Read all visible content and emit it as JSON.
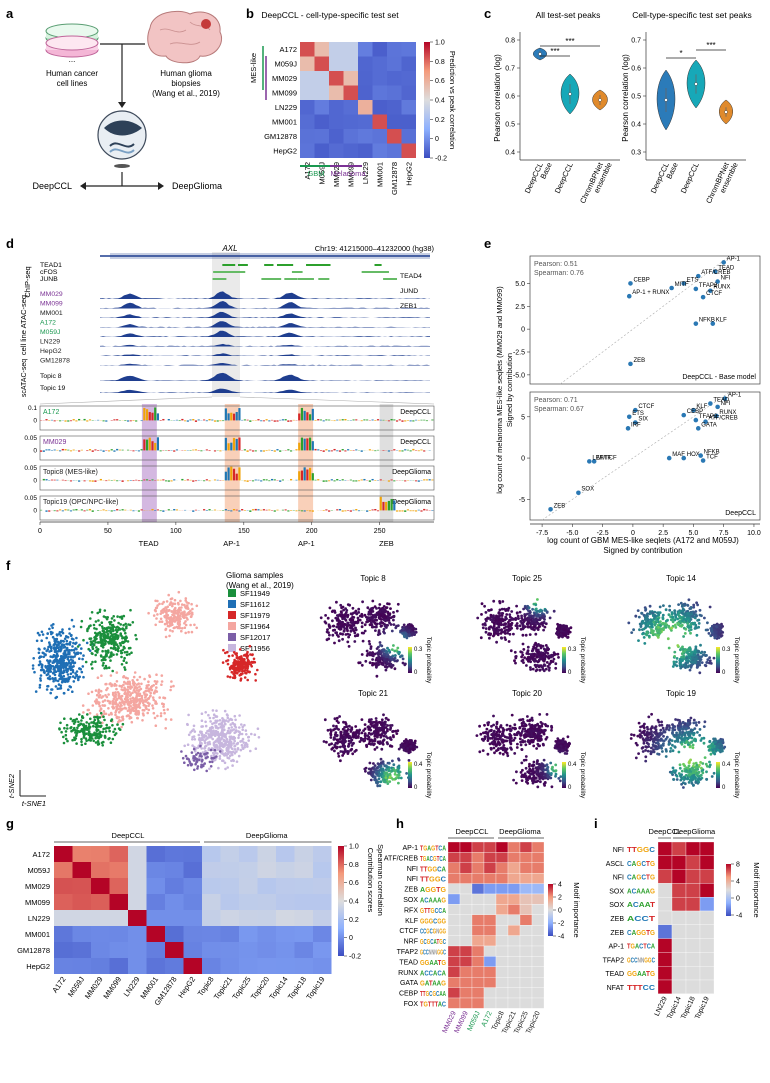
{
  "panels": {
    "a": {
      "letter": "a",
      "cell_lines_label_1": "Human cancer",
      "cell_lines_label_2": "cell lines",
      "dots": "...",
      "biopsy_label_1": "Human glioma",
      "biopsy_label_2": "biopsies",
      "biopsy_label_3": "(Wang et al., 2019)",
      "model_left": "DeepCCL",
      "model_right": "DeepGlioma"
    },
    "b": {
      "letter": "b",
      "title": "DeepCCL - cell-type-specific test set",
      "bracket_label": "MES-like",
      "rows": [
        "A172",
        "M059J",
        "MM029",
        "MM099",
        "LN229",
        "MM001",
        "GM12878",
        "HepG2"
      ],
      "cols": [
        "A172",
        "M059J",
        "MM029",
        "MM099",
        "LN229",
        "MM001",
        "GM12878",
        "HepG2"
      ],
      "colorbar_label": "Prediction vs peak correlation",
      "colorbar_ticks": [
        "1.0",
        "0.8",
        "0.6",
        "0.4",
        "0.2",
        "0",
        "-0.2"
      ],
      "group_gbm": "GBM",
      "group_melanoma": "Melanoma",
      "colors": {
        "gbm": "#1a9850",
        "melanoma": "#7b3294"
      }
    },
    "c": {
      "letter": "c",
      "left_title": "All test-set peaks",
      "right_title": "Cell-type-specific test set peaks",
      "ylabel": "Pearson correlation (log)",
      "left_yticks": [
        "0.8",
        "0.7",
        "0.6",
        "0.5",
        "0.4"
      ],
      "right_yticks": [
        "0.7",
        "0.6",
        "0.5",
        "0.4",
        "0.3"
      ],
      "cats": [
        "DeepCCL Base",
        "DeepCCL",
        "ChromBPNet ensemble"
      ],
      "sig": [
        "***",
        "***",
        "*",
        "***"
      ]
    },
    "d": {
      "letter": "d",
      "gene": "AXL",
      "locus": "Chr19: 41215000–41232000 (hg38)",
      "chip_label": "ChIP-seq",
      "chip_tracks": [
        "TEAD1",
        "cFOS",
        "JUNB"
      ],
      "chip_right": [
        "TEAD4",
        "JUND",
        "ZEB1"
      ],
      "atac_label": "cell line ATAC-seq",
      "atac_tracks": [
        "MM029",
        "MM099",
        "MM001",
        "A172",
        "M059J",
        "LN229",
        "HepG2",
        "GM12878"
      ],
      "scatac_label": "scATAC-seq",
      "scatac_tracks": [
        "Topic 8",
        "Topic 19"
      ],
      "contrib_rows": [
        {
          "label": "A172",
          "model": "DeepCCL",
          "ymax": "0.1",
          "ymin": "0"
        },
        {
          "label": "MM029",
          "model": "DeepCCL",
          "ymax": "0.05",
          "ymin": "0"
        },
        {
          "label": "Topic8 (MES-like)",
          "model": "DeepGlioma",
          "ymax": "0.05",
          "ymin": "0"
        },
        {
          "label": "Topic19 (OPC/NPC-like)",
          "model": "DeepGlioma",
          "ymax": "0.05",
          "ymin": "0"
        }
      ],
      "xticks": [
        "0",
        "50",
        "100",
        "150",
        "200",
        "250"
      ],
      "motifs": [
        "TEAD",
        "AP-1",
        "AP-1",
        "ZEB"
      ]
    },
    "e": {
      "letter": "e",
      "ylabel_1": "log count of melanoma MES-like seqlets (MM029 and MM099)",
      "ylabel_2": "Signed by contribution",
      "xlabel_1": "log count of GBM MES-like seqlets (A172 and M059J)",
      "xlabel_2": "Signed by contribution",
      "top": {
        "pearson": "Pearson: 0.51",
        "spearman": "Spearman: 0.76",
        "model": "DeepCCL - Base model",
        "yticks": [
          "5.0",
          "2.5",
          "0",
          "-2.5",
          "-5.0"
        ]
      },
      "bottom": {
        "pearson": "Pearson: 0.71",
        "spearman": "Spearman: 0.67",
        "model": "DeepCCL",
        "yticks": [
          "5",
          "0",
          "-5"
        ]
      },
      "xticks": [
        "-7.5",
        "-5.0",
        "-2.5",
        "0",
        "2.5",
        "5.0",
        "7.5",
        "10.0"
      ]
    },
    "f": {
      "letter": "f",
      "legend_title_1": "Glioma samples",
      "legend_title_2": "(Wang et al., 2019)",
      "samples": [
        {
          "name": "SF11949",
          "color": "#1a8f3c"
        },
        {
          "name": "SF11612",
          "color": "#1f6fb5"
        },
        {
          "name": "SF11979",
          "color": "#d62728"
        },
        {
          "name": "SF11964",
          "color": "#f4a6a0"
        },
        {
          "name": "SF12017",
          "color": "#7b5ea7"
        },
        {
          "name": "SF11956",
          "color": "#c7b6de"
        }
      ],
      "axis_y": "t-SNE2",
      "axis_x": "t-SNE1",
      "topics": [
        {
          "name": "Topic 8",
          "cmax": "0.3"
        },
        {
          "name": "Topic 25",
          "cmax": "0.3"
        },
        {
          "name": "Topic 14",
          "cmax": "0.3"
        },
        {
          "name": "Topic 21",
          "cmax": "0.4"
        },
        {
          "name": "Topic 20",
          "cmax": "0.4"
        },
        {
          "name": "Topic 19",
          "cmax": "0.4"
        }
      ],
      "cmin": "0",
      "cbar_label": "Topic probability"
    },
    "g": {
      "letter": "g",
      "group_left": "DeepCCL",
      "group_right": "DeepGlioma",
      "rows": [
        "A172",
        "M059J",
        "MM029",
        "MM099",
        "LN229",
        "MM001",
        "GM12878",
        "HepG2"
      ],
      "cols": [
        "A172",
        "M059J",
        "MM029",
        "MM099",
        "LN229",
        "MM001",
        "GM12878",
        "HepG2",
        "Topic8",
        "Topic21",
        "Topic25",
        "Topic20",
        "Topic14",
        "Topic18",
        "Topic19"
      ],
      "cbar_label_1": "Contribution scores",
      "cbar_label_2": "Spearman correlation",
      "cbar_ticks": [
        "1.0",
        "0.8",
        "0.6",
        "0.4",
        "0.2",
        "0",
        "-0.2"
      ]
    },
    "h": {
      "letter": "h",
      "group_left": "DeepCCL",
      "group_right": "DeepGlioma",
      "rows": [
        "AP-1",
        "ATF/CREB",
        "NFI",
        "NFI",
        "ZEB",
        "SOX",
        "RFX",
        "KLF",
        "CTCF",
        "NRF",
        "TFAP2",
        "TEAD",
        "RUNX",
        "GATA",
        "CEBP",
        "FOX"
      ],
      "logos": [
        "TGAGTCA",
        "TGACGTCA",
        "TTGGCA",
        "TTGGC",
        "AGGTG",
        "ACAAAG",
        "GTTGCCA",
        "GGGCGG",
        "CCGCGNGG",
        "GCGCATGC",
        "GCCNNNGGC",
        "GGAATG",
        "ACCACA",
        "GATAAG",
        "TTGCGCAA",
        "TGTTTAC"
      ],
      "cols": [
        "MM029",
        "MM099",
        "M059J",
        "A172",
        "Topic8",
        "Topic21",
        "Topic25",
        "Topic20"
      ],
      "cbar_label": "Motif importance",
      "cbar_ticks": [
        "4",
        "2",
        "0",
        "-2",
        "-4"
      ]
    },
    "i": {
      "letter": "i",
      "group_left": "DeepCCL",
      "group_right": "DeepGlioma",
      "rows": [
        "NFI",
        "ASCL",
        "NFI",
        "SOX",
        "SOX",
        "ZEB",
        "ZEB",
        "AP-1",
        "TFAP2",
        "TEAD",
        "NFAT"
      ],
      "logos": [
        "TTGGC",
        "CAGCTG",
        "CAGCTG",
        "ACAAAG",
        "ACAAT",
        "ACCT",
        "CAGGTG",
        "TGACTCA",
        "GCCNNGGC",
        "GGAATG",
        "TTTCC"
      ],
      "cols": [
        "LN229",
        "Topic14",
        "Topic18",
        "Topic19"
      ],
      "cbar_label": "Motif importance",
      "cbar_ticks": [
        "8",
        "4",
        "0",
        "-4"
      ]
    }
  }
}
